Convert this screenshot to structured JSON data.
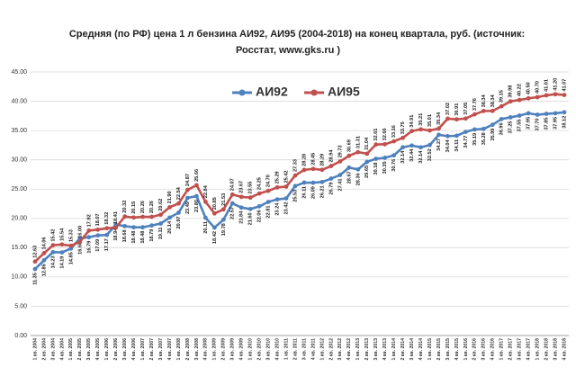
{
  "chart_data": {
    "type": "line",
    "title": "Средняя (по РФ) цена 1 л бензина АИ92, АИ95 (2004-2018) на конец квартала, руб. (источник:",
    "subtitle": "Росстат, www.gks.ru )",
    "categories": [
      "1 кв. 2004",
      "2 кв. 2004",
      "3 кв. 2004",
      "4 кв. 2004",
      "1 кв. 2005",
      "2 кв. 2005",
      "3 кв. 2005",
      "4 кв. 2005",
      "1 кв. 2006",
      "2 кв. 2006",
      "3 кв. 2006",
      "4 кв. 2006",
      "1 кв. 2007",
      "2 кв. 2007",
      "3 кв. 2007",
      "4 кв. 2007",
      "1 кв. 2008",
      "2 кв. 2008",
      "3 кв. 2008",
      "4 кв. 2008",
      "1 кв. 2009",
      "2 кв. 2009",
      "3 кв. 2009",
      "4 кв. 2009",
      "1 кв. 2010",
      "2 кв. 2010",
      "3 кв. 2010",
      "4 кв. 2010",
      "1 кв. 2011",
      "2 кв. 2011",
      "3 кв. 2011",
      "4 кв. 2011",
      "1 кв. 2012",
      "2 кв. 2012",
      "3 кв. 2012",
      "4 кв. 2012",
      "1 кв. 2013",
      "2 кв. 2013",
      "3 кв. 2013",
      "4 кв. 2013",
      "1 кв. 2014",
      "2 кв. 2014",
      "3 кв. 2014",
      "4 кв. 2014",
      "1 кв. 2015",
      "2 кв. 2015",
      "3 кв. 2015",
      "4 кв. 2015",
      "1 кв. 2016",
      "2 кв. 2016",
      "3 кв. 2016",
      "4 кв. 2016",
      "1 кв. 2017",
      "2 кв. 2017",
      "3 кв. 2017",
      "4 кв. 2017",
      "1 кв. 2018",
      "2 кв. 2018",
      "3 кв. 2018",
      "4 кв. 2018"
    ],
    "series": [
      {
        "name": "АИ92",
        "color": "#4f81bd",
        "values": [
          11.35,
          12.86,
          14.23,
          14.19,
          14.85,
          16.6,
          16.79,
          17.09,
          17.17,
          18.94,
          18.68,
          18.48,
          18.48,
          18.79,
          19.11,
          20.14,
          20.97,
          23.49,
          23.8,
          20.11,
          18.42,
          19.78,
          22.57,
          21.84,
          21.6,
          22.06,
          22.81,
          23.24,
          23.42,
          25.53,
          26.11,
          26.09,
          26.21,
          26.79,
          27.41,
          28.67,
          28.36,
          29.65,
          30.18,
          30.35,
          30.76,
          32.14,
          32.44,
          32.14,
          32.52,
          34.27,
          34.04,
          34.11,
          34.77,
          35.19,
          35.28,
          35.99,
          36.96,
          37.25,
          37.55,
          37.95,
          37.7,
          37.85,
          37.95,
          38.12
        ],
        "value_labels": [
          "11.35",
          "12.86",
          "14.23",
          "14.19",
          "14.85",
          "16.60",
          "16.79",
          "17.09",
          "17.17",
          "18.94",
          "18.68",
          "18.48",
          "18.48",
          "18.79",
          "19.11",
          "20.14",
          "20.97",
          "23.49",
          "23.80",
          "20.11",
          "18.42",
          "19.78",
          "22.57",
          "21.84",
          "21.60",
          "22.06",
          "22.81",
          "23.24",
          "23.42",
          "25.53",
          "26.11",
          "26.09",
          "26.21",
          "26.79",
          "27.41",
          "28.67",
          "28.36",
          "29.65",
          "30.18",
          "30.35",
          "30.76",
          "32.14",
          "32.44",
          "32.14",
          "32.52",
          "34.27",
          "34.04",
          "34.11",
          "34.77",
          "35.19",
          "35.28",
          "35.99",
          "36.96",
          "37.25",
          "37.55",
          "37.95",
          "37.70",
          "37.85",
          "37.95",
          "38.12"
        ]
      },
      {
        "name": "АИ95",
        "color": "#c0504d",
        "values": [
          12.63,
          14.06,
          15.42,
          15.54,
          15.33,
          16.0,
          17.92,
          18.07,
          18.32,
          18.41,
          20.32,
          20.15,
          20.26,
          20.26,
          20.62,
          21.9,
          22.54,
          24.87,
          25.66,
          22.84,
          20.85,
          21.53,
          24.07,
          23.67,
          23.55,
          24.25,
          24.7,
          25.29,
          25.42,
          27.33,
          28.28,
          28.45,
          28.29,
          28.94,
          29.73,
          30.69,
          31.31,
          31.04,
          32.61,
          32.66,
          33.16,
          33.75,
          34.91,
          35.21,
          35.01,
          35.34,
          37.02,
          36.91,
          37.05,
          37.76,
          38.34,
          38.34,
          39.15,
          39.98,
          40.22,
          40.5,
          40.7,
          41.01,
          41.2,
          41.07
        ],
        "value_labels": [
          "12.63",
          "14.06",
          "15.42",
          "15.54",
          "15.33",
          "16.00",
          "17.92",
          "18.07",
          "18.32",
          "18.41",
          "20.32",
          "20.15",
          "20.26",
          "20.26",
          "20.62",
          "21.90",
          "22.54",
          "24.87",
          "25.66",
          "22.84",
          "20.85",
          "21.53",
          "24.07",
          "23.67",
          "23.55",
          "24.25",
          "24.70",
          "25.29",
          "25.42",
          "27.33",
          "28.28",
          "28.45",
          "28.29",
          "28.94",
          "29.73",
          "30.69",
          "31.31",
          "31.04",
          "32.61",
          "32.66",
          "33.16",
          "33.75",
          "34.91",
          "35.21",
          "35.01",
          "35.34",
          "37.02",
          "36.91",
          "37.05",
          "37.76",
          "38.34",
          "38.34",
          "39.15",
          "39.98",
          "40.22",
          "40.50",
          "40.70",
          "41.01",
          "41.20",
          "41.07"
        ]
      }
    ],
    "ylim": [
      0,
      45
    ],
    "yticks": [
      {
        "value": 0,
        "label": "0.00"
      },
      {
        "value": 5,
        "label": "5.00"
      },
      {
        "value": 10,
        "label": "10.00"
      },
      {
        "value": 15,
        "label": "15.00"
      },
      {
        "value": 20,
        "label": "20.00"
      },
      {
        "value": 25,
        "label": "25.00"
      },
      {
        "value": 30,
        "label": "30.00"
      },
      {
        "value": 35,
        "label": "35.00"
      },
      {
        "value": 40,
        "label": "40.00"
      },
      {
        "value": 45,
        "label": "45.00"
      }
    ],
    "grid": true,
    "legend": "top-left"
  }
}
